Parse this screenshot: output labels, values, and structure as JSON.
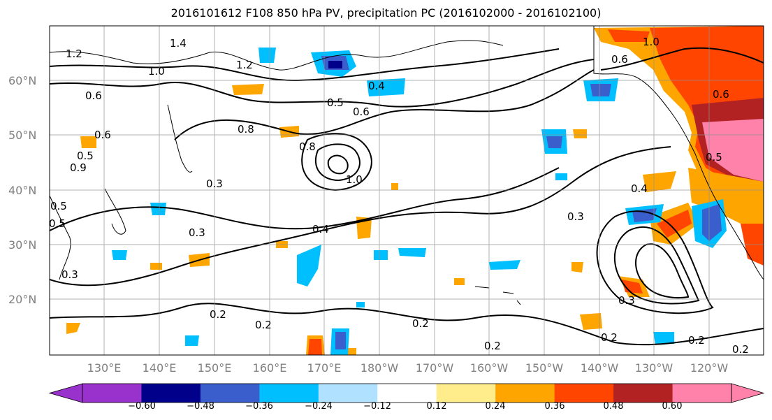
{
  "title": "2016101612 F108 850 hPa PV, precipitation PC (2016102000 - 2016102100)",
  "map": {
    "lat_ticks": [
      "60°N",
      "50°N",
      "40°N",
      "30°N",
      "20°N"
    ],
    "lon_ticks": [
      "130°E",
      "140°E",
      "150°E",
      "160°E",
      "170°E",
      "180°W",
      "170°W",
      "160°W",
      "150°W",
      "140°W",
      "130°W",
      "120°W"
    ],
    "contour_labels": [
      "1.4",
      "1.2",
      "1.0",
      "1.2",
      "0.6",
      "0.4",
      "0.5",
      "0.6",
      "0.8",
      "0.8",
      "1.0",
      "0.5",
      "0.6",
      "0.3",
      "0.3",
      "0.4",
      "0.3",
      "0.4",
      "0.2",
      "0.2",
      "0.2",
      "0.2",
      "0.3",
      "0.5",
      "0.6",
      "1.0",
      "0.2",
      "0.2",
      "0.2",
      "0.3",
      "0.5",
      "0.6",
      "0.9",
      "0.5"
    ]
  },
  "colorbar": {
    "ticks": [
      "−0.60",
      "−0.48",
      "−0.36",
      "−0.24",
      "−0.12",
      "0.12",
      "0.24",
      "0.36",
      "0.48",
      "0.60"
    ],
    "colors": [
      "#9932cc",
      "#00008b",
      "#3a5fcd",
      "#00bfff",
      "#b0e2ff",
      "#ffffff",
      "#ffec8b",
      "#ffa500",
      "#ff4500",
      "#b22222",
      "#ff82ab"
    ]
  }
}
